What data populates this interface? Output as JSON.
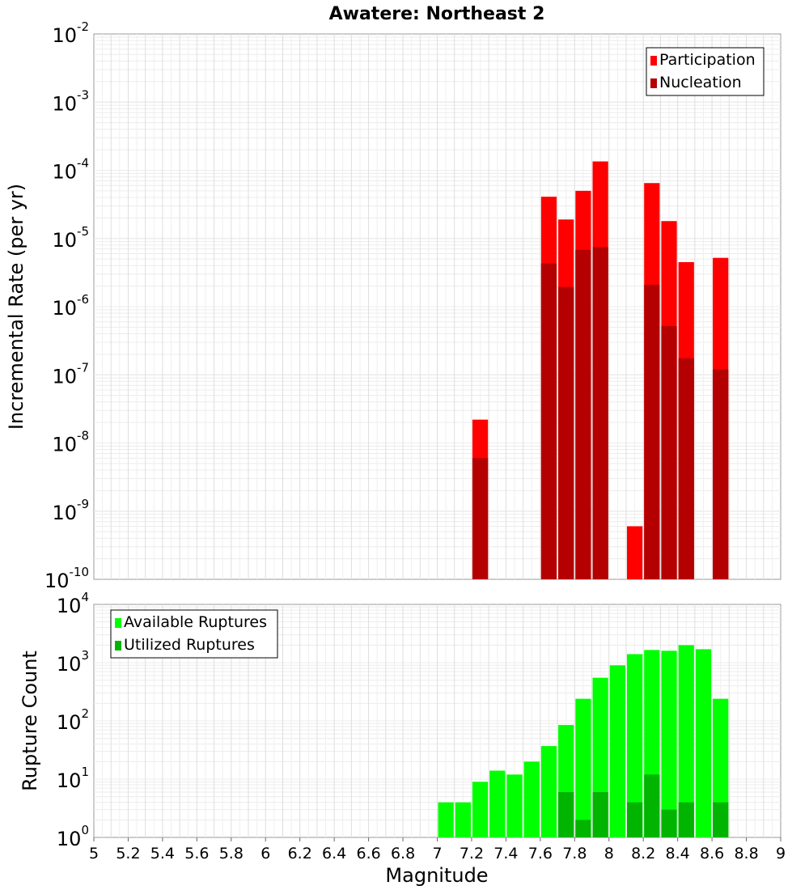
{
  "chart_data": [
    {
      "type": "bar",
      "title": "Awatere: Northeast 2",
      "ylabel": "Incremental Rate (per yr)",
      "xlabel": "",
      "yscale": "log",
      "ylim": [
        1e-10,
        0.01
      ],
      "xlim": [
        5,
        9
      ],
      "y_tick_exponents": [
        "-10",
        "-9",
        "-8",
        "-7",
        "-6",
        "-5",
        "-4",
        "-3",
        "-2"
      ],
      "legend_position": "top-right",
      "series": [
        {
          "name": "Participation",
          "color": "#ff0000",
          "x": [
            7.25,
            7.65,
            7.75,
            7.85,
            7.95,
            8.15,
            8.25,
            8.35,
            8.45,
            8.65
          ],
          "values": [
            2.2e-08,
            4.1e-05,
            1.9e-05,
            5e-05,
            0.000135,
            6e-10,
            6.5e-05,
            1.8e-05,
            4.5e-06,
            5.2e-06
          ]
        },
        {
          "name": "Nucleation",
          "color": "#b40000",
          "x": [
            7.25,
            7.65,
            7.75,
            7.85,
            7.95,
            8.25,
            8.35,
            8.45,
            8.65
          ],
          "values": [
            6e-09,
            4.3e-06,
            1.95e-06,
            6.8e-06,
            7.5e-06,
            2.1e-06,
            5.2e-07,
            1.75e-07,
            1.2e-07
          ]
        }
      ]
    },
    {
      "type": "bar",
      "title": "",
      "ylabel": "Rupture Count",
      "xlabel": "Magnitude",
      "yscale": "log",
      "ylim": [
        1,
        10000
      ],
      "xlim": [
        5,
        9
      ],
      "y_tick_exponents": [
        "0",
        "1",
        "2",
        "3",
        "4"
      ],
      "x_ticks": [
        "5",
        "5.2",
        "5.4",
        "5.6",
        "5.8",
        "6",
        "6.2",
        "6.4",
        "6.6",
        "6.8",
        "7",
        "7.2",
        "7.4",
        "7.6",
        "7.8",
        "8",
        "8.2",
        "8.4",
        "8.6",
        "8.8",
        "9"
      ],
      "legend_position": "top-left",
      "series": [
        {
          "name": "Available Ruptures",
          "color": "#00ff00",
          "x": [
            6.95,
            7.05,
            7.15,
            7.25,
            7.35,
            7.45,
            7.55,
            7.65,
            7.75,
            7.85,
            7.95,
            8.05,
            8.15,
            8.25,
            8.35,
            8.45,
            8.55,
            8.65
          ],
          "values": [
            1,
            4,
            4,
            9,
            14,
            12,
            20,
            37,
            85,
            240,
            550,
            900,
            1400,
            1650,
            1600,
            2000,
            1700,
            240
          ]
        },
        {
          "name": "Utilized Ruptures",
          "color": "#00b400",
          "x": [
            7.25,
            7.65,
            7.75,
            7.85,
            7.95,
            8.05,
            8.15,
            8.25,
            8.35,
            8.45,
            8.65
          ],
          "values": [
            1,
            1,
            6,
            2,
            6,
            1,
            4,
            12,
            3,
            4,
            4
          ]
        }
      ]
    }
  ]
}
